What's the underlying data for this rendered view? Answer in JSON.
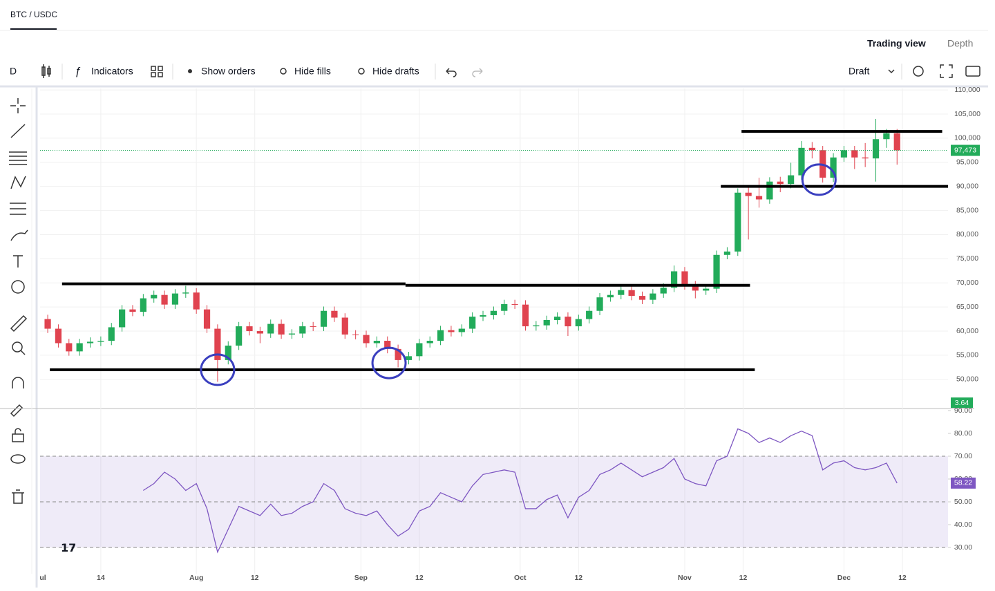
{
  "tabs": {
    "pair": "BTC / USDC",
    "trading_view": "Trading view",
    "depth": "Depth"
  },
  "toolbar": {
    "interval": "D",
    "indicators": "Indicators",
    "show_orders": "Show orders",
    "hide_fills": "Hide fills",
    "hide_drafts": "Hide drafts",
    "draft": "Draft"
  },
  "chart_data": [
    {
      "type": "candlestick",
      "up_color": "#22ab5a",
      "down_color": "#e0434f",
      "x": [
        3,
        5,
        7,
        9,
        11,
        13,
        15,
        17,
        19,
        21,
        23,
        25,
        27,
        29,
        31,
        33,
        35,
        37,
        39,
        41,
        43,
        45,
        47,
        49,
        51,
        53,
        55,
        57,
        59,
        61,
        63,
        65,
        67,
        69,
        71,
        73,
        75,
        77,
        79,
        81,
        83,
        85,
        87,
        89,
        91,
        93,
        95,
        97,
        99,
        101,
        103,
        105,
        107,
        109,
        111,
        113,
        115,
        117,
        119,
        121,
        123,
        125,
        127,
        129,
        131,
        133,
        135,
        137,
        139,
        141,
        143,
        145,
        147,
        149,
        151,
        153,
        155,
        157,
        159,
        161,
        163
      ],
      "open": [
        62500,
        60500,
        57500,
        55800,
        57500,
        57800,
        58000,
        60800,
        64500,
        64000,
        66800,
        67500,
        65500,
        67800,
        68000,
        64500,
        60500,
        54000,
        57000,
        61000,
        60000,
        59500,
        61500,
        59300,
        59500,
        61000,
        60900,
        64200,
        62800,
        59300,
        59200,
        57500,
        58000,
        56300,
        54000,
        54800,
        57500,
        58000,
        60200,
        59800,
        60500,
        63000,
        63300,
        64200,
        65600,
        65500,
        61000,
        61200,
        62300,
        63000,
        61000,
        62500,
        64200,
        67000,
        67500,
        68500,
        67300,
        66500,
        67800,
        69000,
        72400,
        69500,
        68400,
        68800,
        75800,
        76500,
        88700,
        88000,
        87300,
        91000,
        90500,
        92300,
        98000,
        97500,
        91800,
        96000,
        97500,
        96000,
        95800,
        99800,
        101000
      ],
      "high": [
        63400,
        61400,
        58400,
        58400,
        58700,
        58900,
        61700,
        65400,
        65400,
        67700,
        68400,
        68400,
        68700,
        69400,
        68900,
        65400,
        61400,
        57900,
        61900,
        61900,
        60900,
        62400,
        62400,
        60400,
        61900,
        61900,
        65100,
        65100,
        63700,
        60200,
        60100,
        58900,
        58900,
        57200,
        55700,
        58400,
        58900,
        61100,
        61100,
        61400,
        63900,
        64200,
        65100,
        66500,
        66500,
        66400,
        62100,
        63200,
        63900,
        63900,
        63400,
        65100,
        67900,
        68400,
        69400,
        69400,
        68200,
        68700,
        69900,
        73600,
        73300,
        70400,
        69700,
        76700,
        77400,
        89600,
        90000,
        91800,
        91900,
        92000,
        94900,
        99400,
        99200,
        98400,
        96900,
        98400,
        98400,
        99000,
        104000,
        101900,
        101900
      ],
      "low": [
        59600,
        56600,
        54900,
        54900,
        56600,
        56900,
        57100,
        59900,
        63100,
        63100,
        65900,
        64600,
        64600,
        66900,
        63600,
        59600,
        49500,
        53100,
        56100,
        59100,
        57500,
        58600,
        58400,
        58400,
        58600,
        60000,
        60000,
        61900,
        58400,
        58300,
        56600,
        56600,
        55400,
        52500,
        53100,
        53900,
        56600,
        57100,
        58900,
        58900,
        59600,
        62100,
        62400,
        63300,
        64600,
        60100,
        60100,
        60300,
        61400,
        59000,
        60100,
        61600,
        63300,
        66100,
        66600,
        66400,
        65600,
        65600,
        66900,
        68100,
        68600,
        66800,
        67500,
        67900,
        74900,
        75600,
        79000,
        85600,
        86400,
        88800,
        89600,
        91400,
        95800,
        90800,
        90900,
        95100,
        93600,
        94000,
        91000,
        98000,
        94500
      ],
      "close": [
        60500,
        57500,
        55800,
        57500,
        57800,
        58000,
        60800,
        64500,
        64000,
        66800,
        67500,
        65500,
        67800,
        68000,
        64500,
        60500,
        54000,
        57000,
        61000,
        60000,
        59500,
        61500,
        59300,
        59500,
        61000,
        60900,
        64200,
        62800,
        59300,
        59200,
        57500,
        58000,
        56300,
        54000,
        54800,
        57500,
        58000,
        60200,
        59800,
        60500,
        63000,
        63300,
        64200,
        65600,
        65500,
        61000,
        61200,
        62300,
        63000,
        61000,
        62500,
        64200,
        67000,
        67500,
        68500,
        67300,
        66500,
        67800,
        69000,
        72400,
        69500,
        68400,
        68800,
        75800,
        76500,
        88700,
        88000,
        87300,
        91000,
        90500,
        92300,
        98000,
        97500,
        91800,
        96000,
        97500,
        96000,
        95800,
        99800,
        101000,
        97473
      ],
      "last_close_label": "97,473",
      "volume_last": 3.64,
      "lines": [
        {
          "x": [
            5.7,
            70.4
          ],
          "value": 69800
        },
        {
          "x": [
            70.4,
            135.3
          ],
          "value": 69500
        },
        {
          "x": [
            3.4,
            136.2
          ],
          "value": 52000
        },
        {
          "x": [
            133.7,
            171.5
          ],
          "value": 101400
        },
        {
          "x": [
            129.8,
            172.6
          ],
          "value": 90000
        }
      ],
      "circles": [
        {
          "x": 35,
          "value": 52000
        },
        {
          "x": 67.3,
          "value": 53400
        },
        {
          "x": 148.3,
          "value": 91400
        }
      ],
      "xlim": [
        1.56,
        172.6
      ],
      "xticks": [
        {
          "value": 0,
          "label": "ul"
        },
        {
          "value": 13,
          "label": "14"
        },
        {
          "value": 31,
          "label": "Aug"
        },
        {
          "value": 42,
          "label": "12"
        },
        {
          "value": 62,
          "label": "Sep"
        },
        {
          "value": 73,
          "label": "12"
        },
        {
          "value": 92,
          "label": "Oct"
        },
        {
          "value": 103,
          "label": "12"
        },
        {
          "value": 123,
          "label": "Nov"
        },
        {
          "value": 134,
          "label": "12"
        },
        {
          "value": 153,
          "label": "Dec"
        },
        {
          "value": 164,
          "label": "12"
        }
      ],
      "ylim": [
        44100,
        110300
      ],
      "yticks": [
        {
          "value": 50000,
          "label": "50,000"
        },
        {
          "value": 55000,
          "label": "55,000"
        },
        {
          "value": 60000,
          "label": "60,000"
        },
        {
          "value": 65000,
          "label": "65,000"
        },
        {
          "value": 70000,
          "label": "70,000"
        },
        {
          "value": 75000,
          "label": "75,000"
        },
        {
          "value": 80000,
          "label": "80,000"
        },
        {
          "value": 85000,
          "label": "85,000"
        },
        {
          "value": 90000,
          "label": "90,000"
        },
        {
          "value": 95000,
          "label": "95,000"
        },
        {
          "value": 100000,
          "label": "100,000"
        },
        {
          "value": 105000,
          "label": "105,000"
        },
        {
          "value": 110000,
          "label": "110,000"
        }
      ]
    },
    {
      "type": "line",
      "color": "#7e57c2",
      "x": [
        3,
        5,
        7,
        9,
        11,
        13,
        15,
        17,
        19,
        21,
        23,
        25,
        27,
        29,
        31,
        33,
        35,
        37,
        39,
        41,
        43,
        45,
        47,
        49,
        51,
        53,
        55,
        57,
        59,
        61,
        63,
        65,
        67,
        69,
        71,
        73,
        75,
        77,
        79,
        81,
        83,
        85,
        87,
        89,
        91,
        93,
        95,
        97,
        99,
        101,
        103,
        105,
        107,
        109,
        111,
        113,
        115,
        117,
        119,
        121,
        123,
        125,
        127,
        129,
        131,
        133,
        135,
        137,
        139,
        141,
        143,
        145,
        147,
        149,
        151,
        153,
        155,
        157,
        159,
        161,
        163
      ],
      "values": [
        null,
        null,
        null,
        null,
        null,
        null,
        null,
        null,
        null,
        55,
        58,
        63,
        60,
        55,
        58,
        47,
        28,
        38,
        48,
        46,
        44,
        49,
        44,
        45,
        48,
        50,
        58,
        55,
        47,
        45,
        44,
        46,
        40,
        35,
        38,
        46,
        48,
        54,
        52,
        50,
        57,
        62,
        63,
        64,
        63,
        47,
        47,
        51,
        53,
        43,
        52,
        55,
        62,
        64,
        67,
        64,
        61,
        63,
        65,
        69,
        60,
        58,
        57,
        68,
        70,
        82,
        80,
        76,
        78,
        76,
        79,
        81,
        79,
        64,
        67,
        68,
        65,
        64,
        65,
        67,
        58.22
      ],
      "band": [
        30,
        70
      ],
      "levels": [
        70,
        50,
        30
      ],
      "xlim": [
        1.56,
        172.6
      ],
      "ylim": [
        18.5,
        90.6
      ],
      "yticks": [
        {
          "value": 30,
          "label": "30.00"
        },
        {
          "value": 40,
          "label": "40.00"
        },
        {
          "value": 50,
          "label": "50.00"
        },
        {
          "value": 60,
          "label": "60.00"
        },
        {
          "value": 70,
          "label": "70.00"
        },
        {
          "value": 80,
          "label": "80.00"
        },
        {
          "value": 90,
          "label": "90.00"
        }
      ]
    }
  ]
}
